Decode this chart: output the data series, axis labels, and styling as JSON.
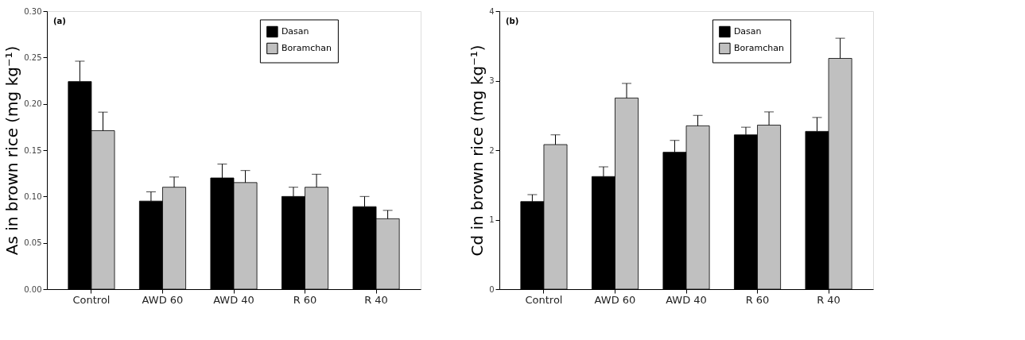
{
  "chart_data": [
    {
      "type": "bar",
      "ylabel": "As in brown rice (mg kg⁻¹)",
      "annotations": [
        "(a)"
      ],
      "categories": [
        "Control",
        "AWD 60",
        "AWD 40",
        "R 60",
        "R 40"
      ],
      "series": [
        {
          "name": "Dasan",
          "color": "#000000",
          "values": [
            0.224,
            0.095,
            0.12,
            0.1,
            0.089
          ],
          "errors": [
            0.022,
            0.01,
            0.015,
            0.01,
            0.011
          ]
        },
        {
          "name": "Boramchan",
          "color": "#c0c0c0",
          "values": [
            0.171,
            0.11,
            0.115,
            0.11,
            0.076
          ],
          "errors": [
            0.02,
            0.011,
            0.013,
            0.014,
            0.009
          ]
        }
      ],
      "ylim": [
        0,
        0.3
      ],
      "yticks": [
        {
          "value": 0,
          "label": "0.00"
        },
        {
          "value": 0.05,
          "label": "0.05"
        },
        {
          "value": 0.1,
          "label": "0.10"
        },
        {
          "value": 0.15,
          "label": "0.15"
        },
        {
          "value": 0.2,
          "label": "0.20"
        },
        {
          "value": 0.25,
          "label": "0.25"
        },
        {
          "value": 0.3,
          "label": "0.30"
        }
      ],
      "grid": false,
      "legend": "top right"
    },
    {
      "type": "bar",
      "ylabel": "Cd in brown rice (mg kg⁻¹)",
      "annotations": [
        "(b)"
      ],
      "categories": [
        "Control",
        "AWD 60",
        "AWD 40",
        "R 60",
        "R 40"
      ],
      "series": [
        {
          "name": "Dasan",
          "color": "#000000",
          "values": [
            1.26,
            1.62,
            1.97,
            2.22,
            2.27
          ],
          "errors": [
            0.1,
            0.14,
            0.17,
            0.11,
            0.2
          ]
        },
        {
          "name": "Boramchan",
          "color": "#c0c0c0",
          "values": [
            2.08,
            2.75,
            2.35,
            2.36,
            3.32
          ],
          "errors": [
            0.14,
            0.21,
            0.15,
            0.19,
            0.29
          ]
        }
      ],
      "ylim": [
        0,
        4
      ],
      "yticks": [
        0,
        1,
        2,
        3,
        4
      ],
      "grid": false,
      "legend": "top right"
    }
  ]
}
